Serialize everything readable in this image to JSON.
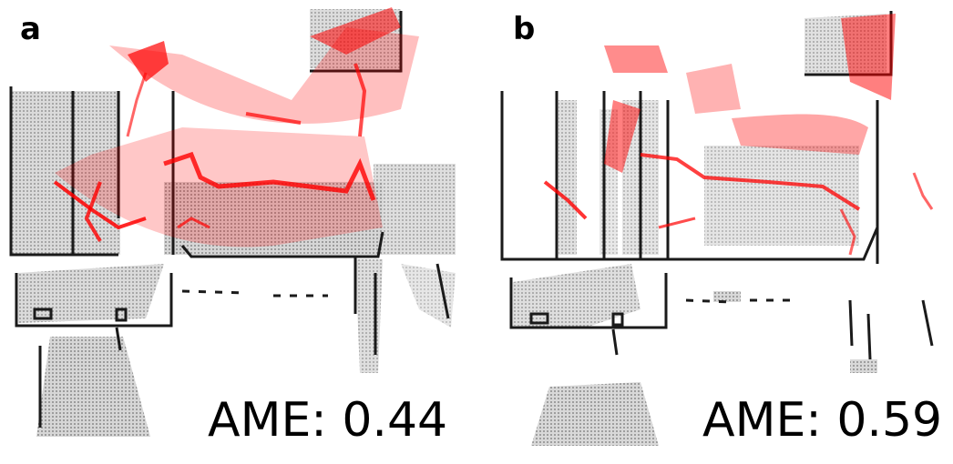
{
  "panels": [
    {
      "letter": "a",
      "metric_text": "AME: 0.44"
    },
    {
      "letter": "b",
      "metric_text": "AME: 0.59"
    }
  ],
  "colors": {
    "map_gray": "#b8b8b8",
    "map_dark": "#222222",
    "trajectory_red": "#ff0000"
  }
}
